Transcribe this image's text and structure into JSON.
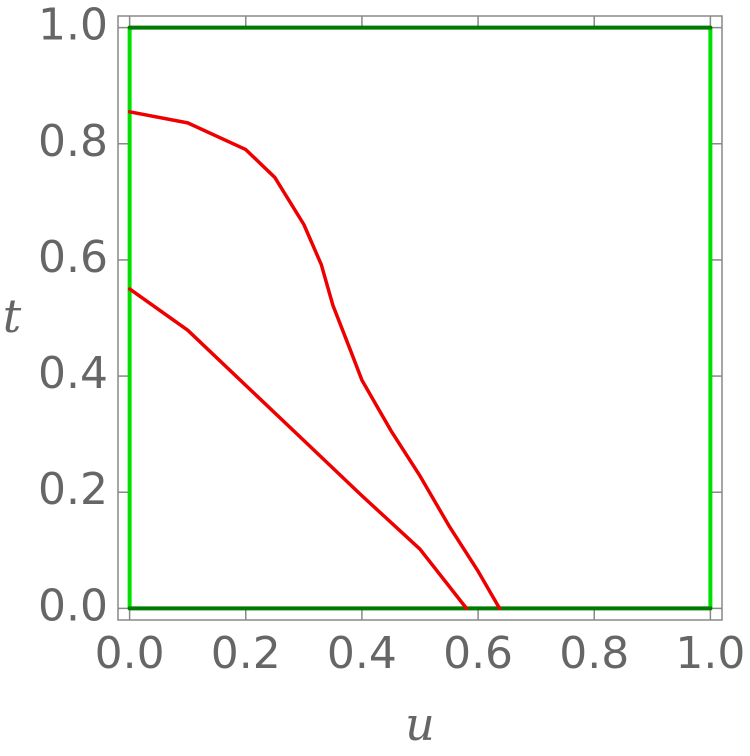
{
  "chart_data": {
    "type": "line",
    "x_label": "u",
    "y_label": "t",
    "xlim": [
      -0.02,
      1.02
    ],
    "ylim": [
      -0.02,
      1.02
    ],
    "xticks": [
      {
        "value": 0,
        "label": "0.0"
      },
      0.2,
      0.4,
      0.6,
      0.8,
      {
        "value": 1,
        "label": "1.0"
      }
    ],
    "yticks": [
      {
        "value": 0,
        "label": "0.0"
      },
      0.2,
      0.4,
      0.6,
      0.8,
      {
        "value": 1,
        "label": "1.0"
      }
    ],
    "series": [
      {
        "color": "#00e000",
        "x": [
          0,
          0
        ],
        "values": [
          0,
          1
        ]
      },
      {
        "color": "#00e000",
        "x": [
          1,
          1
        ],
        "values": [
          0,
          1
        ]
      },
      {
        "color": "#007a00",
        "x": [
          0,
          1
        ],
        "values": [
          0,
          0
        ]
      },
      {
        "color": "#007a00",
        "x": [
          0,
          1
        ],
        "values": [
          1,
          1
        ]
      },
      {
        "color": "#ee0000",
        "x": [
          0,
          0.1,
          0.2,
          0.25,
          0.3,
          0.33,
          0.35,
          0.38,
          0.4,
          0.45,
          0.5,
          0.55,
          0.6,
          0.637
        ],
        "values": [
          0.855,
          0.836,
          0.79,
          0.742,
          0.661,
          0.592,
          0.522,
          0.445,
          0.393,
          0.306,
          0.228,
          0.142,
          0.064,
          0
        ]
      },
      {
        "color": "#ee0000",
        "x": [
          0,
          0.1,
          0.2,
          0.3,
          0.4,
          0.5,
          0.58
        ],
        "values": [
          0.55,
          0.479,
          0.384,
          0.289,
          0.194,
          0.102,
          0
        ]
      }
    ]
  }
}
